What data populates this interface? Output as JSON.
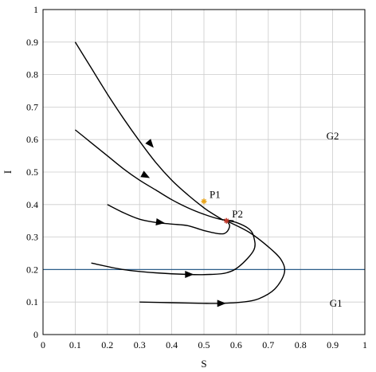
{
  "chart_data": {
    "type": "line",
    "xlabel": "S",
    "ylabel": "I",
    "xlim": [
      0,
      1
    ],
    "ylim": [
      0,
      1
    ],
    "grid": true,
    "xticks": [
      "0",
      "0.1",
      "0.2",
      "0.3",
      "0.4",
      "0.5",
      "0.6",
      "0.7",
      "0.8",
      "0.9",
      "1"
    ],
    "yticks": [
      "0",
      "0.1",
      "0.2",
      "0.3",
      "0.4",
      "0.5",
      "0.6",
      "0.7",
      "0.8",
      "0.9",
      "1"
    ],
    "horizontal_line": {
      "y": 0.2,
      "color": "#2b5d8a"
    },
    "series": [
      {
        "x": [
          0.1,
          0.15,
          0.2,
          0.25,
          0.3,
          0.35,
          0.4,
          0.45,
          0.5,
          0.53,
          0.56
        ],
        "y": [
          0.9,
          0.82,
          0.74,
          0.665,
          0.595,
          0.53,
          0.475,
          0.43,
          0.39,
          0.37,
          0.352
        ]
      },
      {
        "x": [
          0.1,
          0.15,
          0.2,
          0.25,
          0.3,
          0.35,
          0.4,
          0.45,
          0.5,
          0.55,
          0.59,
          0.58,
          0.57
        ],
        "y": [
          0.63,
          0.59,
          0.55,
          0.51,
          0.475,
          0.445,
          0.415,
          0.39,
          0.37,
          0.355,
          0.35,
          0.35,
          0.35
        ]
      },
      {
        "x": [
          0.2,
          0.25,
          0.3,
          0.35,
          0.4,
          0.45,
          0.5,
          0.55,
          0.57,
          0.58,
          0.57
        ],
        "y": [
          0.4,
          0.375,
          0.355,
          0.345,
          0.34,
          0.335,
          0.32,
          0.31,
          0.315,
          0.335,
          0.35
        ]
      },
      {
        "x": [
          0.15,
          0.25,
          0.35,
          0.45,
          0.52,
          0.57,
          0.61,
          0.655,
          0.655,
          0.64,
          0.6,
          0.57
        ],
        "y": [
          0.22,
          0.2,
          0.19,
          0.185,
          0.185,
          0.19,
          0.21,
          0.26,
          0.3,
          0.325,
          0.345,
          0.35
        ]
      },
      {
        "x": [
          0.3,
          0.4,
          0.5,
          0.55,
          0.62,
          0.67,
          0.72,
          0.75,
          0.74,
          0.7,
          0.64,
          0.57
        ],
        "y": [
          0.1,
          0.098,
          0.096,
          0.096,
          0.1,
          0.11,
          0.14,
          0.19,
          0.23,
          0.27,
          0.315,
          0.35
        ]
      }
    ],
    "arrows": [
      {
        "x": 0.335,
        "y": 0.585,
        "dx": 0.03,
        "dy": -0.035
      },
      {
        "x": 0.32,
        "y": 0.488,
        "dx": 0.03,
        "dy": -0.016
      },
      {
        "x": 0.365,
        "y": 0.345,
        "dx": 0.03,
        "dy": -0.004
      },
      {
        "x": 0.455,
        "y": 0.185,
        "dx": 0.03,
        "dy": 0
      },
      {
        "x": 0.555,
        "y": 0.096,
        "dx": 0.03,
        "dy": 0
      }
    ],
    "points": [
      {
        "label": "P1",
        "x": 0.5,
        "y": 0.41,
        "color": "#e8a317"
      },
      {
        "label": "P2",
        "x": 0.57,
        "y": 0.35,
        "color": "#c0392b"
      }
    ],
    "region_labels": [
      {
        "label": "G2",
        "x": 0.9,
        "y": 0.61
      },
      {
        "label": "G1",
        "x": 0.91,
        "y": 0.095
      }
    ]
  }
}
